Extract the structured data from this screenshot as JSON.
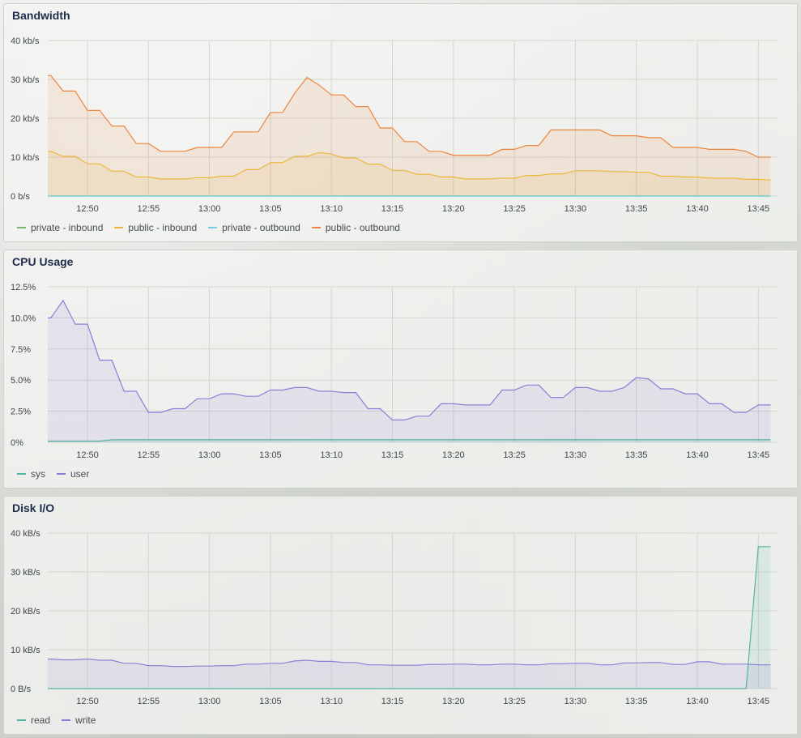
{
  "x_tick_labels": [
    "12:50",
    "12:55",
    "13:00",
    "13:05",
    "13:10",
    "13:15",
    "13:20",
    "13:25",
    "13:30",
    "13:35",
    "13:40",
    "13:45"
  ],
  "panels": [
    {
      "title": "Bandwidth",
      "chart_data": {
        "type": "area",
        "x": [
          "12:46",
          "12:47",
          "12:48",
          "12:49",
          "12:50",
          "12:51",
          "12:52",
          "12:53",
          "12:54",
          "12:55",
          "12:56",
          "12:57",
          "12:58",
          "12:59",
          "13:00",
          "13:01",
          "13:02",
          "13:03",
          "13:04",
          "13:05",
          "13:06",
          "13:07",
          "13:08",
          "13:09",
          "13:10",
          "13:11",
          "13:12",
          "13:13",
          "13:14",
          "13:15",
          "13:16",
          "13:17",
          "13:18",
          "13:19",
          "13:20",
          "13:21",
          "13:22",
          "13:23",
          "13:24",
          "13:25",
          "13:26",
          "13:27",
          "13:28",
          "13:29",
          "13:30",
          "13:31",
          "13:32",
          "13:33",
          "13:34",
          "13:35",
          "13:36",
          "13:37",
          "13:38",
          "13:39",
          "13:40",
          "13:41",
          "13:42",
          "13:43",
          "13:44",
          "13:45",
          "13:46"
        ],
        "series": [
          {
            "name": "private - inbound",
            "color": "#7eb26d",
            "values": [
              0,
              0,
              0,
              0,
              0,
              0,
              0,
              0,
              0,
              0,
              0,
              0,
              0,
              0,
              0,
              0,
              0,
              0,
              0,
              0,
              0,
              0,
              0,
              0,
              0,
              0,
              0,
              0,
              0,
              0,
              0,
              0,
              0,
              0,
              0,
              0,
              0,
              0,
              0,
              0,
              0,
              0,
              0,
              0,
              0,
              0,
              0,
              0,
              0,
              0,
              0,
              0,
              0,
              0,
              0,
              0,
              0,
              0,
              0,
              0,
              0
            ]
          },
          {
            "name": "public - inbound",
            "color": "#eab839",
            "values": [
              11.5,
              11.5,
              10.2,
              10.2,
              8.3,
              8.3,
              6.4,
              6.4,
              4.9,
              4.9,
              4.4,
              4.4,
              4.4,
              4.7,
              4.7,
              5.1,
              5.1,
              6.8,
              6.8,
              8.6,
              8.6,
              10.2,
              10.2,
              11.2,
              10.8,
              9.8,
              9.8,
              8.2,
              8.2,
              6.6,
              6.6,
              5.6,
              5.6,
              4.9,
              4.9,
              4.4,
              4.4,
              4.4,
              4.6,
              4.6,
              5.3,
              5.3,
              5.7,
              5.7,
              6.5,
              6.5,
              6.5,
              6.3,
              6.3,
              6.1,
              6.1,
              5.1,
              5.1,
              4.9,
              4.9,
              4.6,
              4.6,
              4.6,
              4.3,
              4.3,
              4.1
            ]
          },
          {
            "name": "private - outbound",
            "color": "#6ed0e0",
            "values": [
              0,
              0,
              0,
              0,
              0,
              0,
              0,
              0,
              0,
              0,
              0,
              0,
              0,
              0,
              0,
              0,
              0,
              0,
              0,
              0,
              0,
              0,
              0,
              0,
              0,
              0,
              0,
              0,
              0,
              0,
              0,
              0,
              0,
              0,
              0,
              0,
              0,
              0,
              0,
              0,
              0,
              0,
              0,
              0,
              0,
              0,
              0,
              0,
              0,
              0,
              0,
              0,
              0,
              0,
              0,
              0,
              0,
              0,
              0,
              0,
              0
            ]
          },
          {
            "name": "public - outbound",
            "color": "#ef843c",
            "values": [
              31,
              31,
              27,
              27,
              22,
              22,
              18,
              18,
              13.5,
              13.5,
              11.5,
              11.5,
              11.5,
              12.5,
              12.5,
              12.5,
              16.5,
              16.5,
              16.5,
              21.5,
              21.5,
              26.5,
              30.5,
              28.5,
              26,
              26,
              23,
              23,
              17.5,
              17.5,
              14,
              14,
              11.5,
              11.5,
              10.5,
              10.5,
              10.5,
              10.5,
              12,
              12,
              13,
              13,
              17,
              17,
              17,
              17,
              17,
              15.5,
              15.5,
              15.5,
              15,
              15,
              12.5,
              12.5,
              12.5,
              12,
              12,
              12,
              11.5,
              10,
              10
            ]
          }
        ],
        "ylim": [
          0,
          40
        ],
        "y_ticks": [
          0,
          10,
          20,
          30,
          40
        ],
        "y_tick_labels": [
          "0 b/s",
          "10 kb/s",
          "20 kb/s",
          "30 kb/s",
          "40 kb/s"
        ],
        "grid": true,
        "legend_position": "bottom-left"
      }
    },
    {
      "title": "CPU Usage",
      "chart_data": {
        "type": "area",
        "x": [
          "12:46",
          "12:47",
          "12:48",
          "12:49",
          "12:50",
          "12:51",
          "12:52",
          "12:53",
          "12:54",
          "12:55",
          "12:56",
          "12:57",
          "12:58",
          "12:59",
          "13:00",
          "13:01",
          "13:02",
          "13:03",
          "13:04",
          "13:05",
          "13:06",
          "13:07",
          "13:08",
          "13:09",
          "13:10",
          "13:11",
          "13:12",
          "13:13",
          "13:14",
          "13:15",
          "13:16",
          "13:17",
          "13:18",
          "13:19",
          "13:20",
          "13:21",
          "13:22",
          "13:23",
          "13:24",
          "13:25",
          "13:26",
          "13:27",
          "13:28",
          "13:29",
          "13:30",
          "13:31",
          "13:32",
          "13:33",
          "13:34",
          "13:35",
          "13:36",
          "13:37",
          "13:38",
          "13:39",
          "13:40",
          "13:41",
          "13:42",
          "13:43",
          "13:44",
          "13:45",
          "13:46"
        ],
        "series": [
          {
            "name": "sys",
            "color": "#56b3a1",
            "values": [
              0.1,
              0.1,
              0.1,
              0.1,
              0.1,
              0.1,
              0.2,
              0.2,
              0.2,
              0.2,
              0.2,
              0.2,
              0.2,
              0.2,
              0.2,
              0.2,
              0.2,
              0.2,
              0.2,
              0.2,
              0.2,
              0.2,
              0.2,
              0.2,
              0.2,
              0.2,
              0.2,
              0.2,
              0.2,
              0.2,
              0.2,
              0.2,
              0.2,
              0.2,
              0.2,
              0.2,
              0.2,
              0.2,
              0.2,
              0.2,
              0.2,
              0.2,
              0.2,
              0.2,
              0.2,
              0.2,
              0.2,
              0.2,
              0.2,
              0.2,
              0.2,
              0.2,
              0.2,
              0.2,
              0.2,
              0.2,
              0.2,
              0.2,
              0.2,
              0.2,
              0.2
            ]
          },
          {
            "name": "user",
            "color": "#8a7fd8",
            "values": [
              10,
              10,
              11.4,
              9.5,
              9.5,
              6.6,
              6.6,
              4.1,
              4.1,
              2.4,
              2.4,
              2.7,
              2.7,
              3.5,
              3.5,
              3.9,
              3.9,
              3.7,
              3.7,
              4.2,
              4.2,
              4.4,
              4.4,
              4.1,
              4.1,
              4.0,
              4.0,
              2.7,
              2.7,
              1.8,
              1.8,
              2.1,
              2.1,
              3.1,
              3.1,
              3.0,
              3.0,
              3.0,
              4.2,
              4.2,
              4.6,
              4.6,
              3.6,
              3.6,
              4.4,
              4.4,
              4.1,
              4.1,
              4.4,
              5.2,
              5.1,
              4.3,
              4.3,
              3.9,
              3.9,
              3.1,
              3.1,
              2.4,
              2.4,
              3.0,
              3.0
            ]
          }
        ],
        "ylim": [
          0,
          12.5
        ],
        "y_ticks": [
          0,
          2.5,
          5,
          7.5,
          10,
          12.5
        ],
        "y_tick_labels": [
          "0%",
          "2.5%",
          "5.0%",
          "7.5%",
          "10.0%",
          "12.5%"
        ],
        "grid": true,
        "legend_position": "bottom-left"
      }
    },
    {
      "title": "Disk I/O",
      "chart_data": {
        "type": "area",
        "x": [
          "12:46",
          "12:47",
          "12:48",
          "12:49",
          "12:50",
          "12:51",
          "12:52",
          "12:53",
          "12:54",
          "12:55",
          "12:56",
          "12:57",
          "12:58",
          "12:59",
          "13:00",
          "13:01",
          "13:02",
          "13:03",
          "13:04",
          "13:05",
          "13:06",
          "13:07",
          "13:08",
          "13:09",
          "13:10",
          "13:11",
          "13:12",
          "13:13",
          "13:14",
          "13:15",
          "13:16",
          "13:17",
          "13:18",
          "13:19",
          "13:20",
          "13:21",
          "13:22",
          "13:23",
          "13:24",
          "13:25",
          "13:26",
          "13:27",
          "13:28",
          "13:29",
          "13:30",
          "13:31",
          "13:32",
          "13:33",
          "13:34",
          "13:35",
          "13:36",
          "13:37",
          "13:38",
          "13:39",
          "13:40",
          "13:41",
          "13:42",
          "13:43",
          "13:44",
          "13:45",
          "13:46"
        ],
        "series": [
          {
            "name": "read",
            "color": "#56b3a1",
            "values": [
              0,
              0,
              0,
              0,
              0,
              0,
              0,
              0,
              0,
              0,
              0,
              0,
              0,
              0,
              0,
              0,
              0,
              0,
              0,
              0,
              0,
              0,
              0,
              0,
              0,
              0,
              0,
              0,
              0,
              0,
              0,
              0,
              0,
              0,
              0,
              0,
              0,
              0,
              0,
              0,
              0,
              0,
              0,
              0,
              0,
              0,
              0,
              0,
              0,
              0,
              0,
              0,
              0,
              0,
              0,
              0,
              0,
              0,
              0,
              36.5,
              36.5
            ]
          },
          {
            "name": "write",
            "color": "#8a7fd8",
            "values": [
              7.6,
              7.6,
              7.4,
              7.4,
              7.6,
              7.3,
              7.3,
              6.5,
              6.5,
              5.9,
              5.9,
              5.7,
              5.7,
              5.8,
              5.8,
              5.9,
              5.9,
              6.3,
              6.3,
              6.5,
              6.5,
              7.1,
              7.3,
              7.0,
              7.0,
              6.7,
              6.7,
              6.1,
              6.1,
              6.0,
              6.0,
              6.0,
              6.2,
              6.2,
              6.3,
              6.3,
              6.1,
              6.1,
              6.3,
              6.3,
              6.1,
              6.1,
              6.4,
              6.4,
              6.5,
              6.5,
              6.1,
              6.1,
              6.6,
              6.6,
              6.7,
              6.7,
              6.2,
              6.2,
              6.9,
              6.9,
              6.3,
              6.3,
              6.3,
              6.1,
              6.1
            ]
          }
        ],
        "ylim": [
          0,
          40
        ],
        "y_ticks": [
          0,
          10,
          20,
          30,
          40
        ],
        "y_tick_labels": [
          "0 B/s",
          "10 kB/s",
          "20 kB/s",
          "30 kB/s",
          "40 kB/s"
        ],
        "grid": true,
        "legend_position": "bottom-left"
      }
    }
  ]
}
